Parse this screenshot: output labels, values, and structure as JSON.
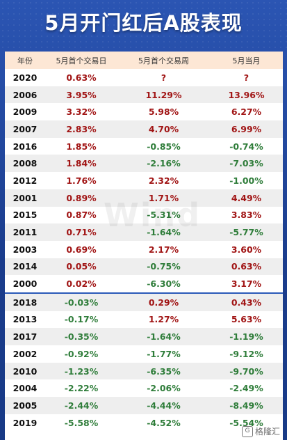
{
  "title": "5月开门红后A股表现",
  "headers": [
    "年份",
    "5月首个交易日",
    "5月首个交易周",
    "5月当月"
  ],
  "rows": [
    {
      "year": "2020",
      "day": "0.63%",
      "week": "?",
      "month": "?"
    },
    {
      "year": "2006",
      "day": "3.95%",
      "week": "11.29%",
      "month": "13.96%"
    },
    {
      "year": "2009",
      "day": "3.32%",
      "week": "5.98%",
      "month": "6.27%"
    },
    {
      "year": "2007",
      "day": "2.83%",
      "week": "4.70%",
      "month": "6.99%"
    },
    {
      "year": "2016",
      "day": "1.85%",
      "week": "-0.85%",
      "month": "-0.74%"
    },
    {
      "year": "2008",
      "day": "1.84%",
      "week": "-2.16%",
      "month": "-7.03%"
    },
    {
      "year": "2012",
      "day": "1.76%",
      "week": "2.32%",
      "month": "-1.00%"
    },
    {
      "year": "2001",
      "day": "0.89%",
      "week": "1.71%",
      "month": "4.49%"
    },
    {
      "year": "2015",
      "day": "0.87%",
      "week": "-5.31%",
      "month": "3.83%"
    },
    {
      "year": "2011",
      "day": "0.71%",
      "week": "-1.64%",
      "month": "-5.77%"
    },
    {
      "year": "2003",
      "day": "0.69%",
      "week": "2.17%",
      "month": "3.60%"
    },
    {
      "year": "2014",
      "day": "0.05%",
      "week": "-0.75%",
      "month": "0.63%"
    },
    {
      "year": "2000",
      "day": "0.02%",
      "week": "-6.30%",
      "month": "3.17%"
    },
    {
      "year": "2018",
      "day": "-0.03%",
      "week": "0.29%",
      "month": "0.43%"
    },
    {
      "year": "2013",
      "day": "-0.17%",
      "week": "1.27%",
      "month": "5.63%"
    },
    {
      "year": "2017",
      "day": "-0.35%",
      "week": "-1.64%",
      "month": "-1.19%"
    },
    {
      "year": "2002",
      "day": "-0.92%",
      "week": "-1.77%",
      "month": "-9.12%"
    },
    {
      "year": "2010",
      "day": "-1.23%",
      "week": "-6.35%",
      "month": "-9.70%"
    },
    {
      "year": "2004",
      "day": "-2.22%",
      "week": "-2.06%",
      "month": "-2.49%"
    },
    {
      "year": "2005",
      "day": "-2.44%",
      "week": "-4.44%",
      "month": "-8.49%"
    },
    {
      "year": "2019",
      "day": "-5.58%",
      "week": "-4.52%",
      "month": "-5.54%"
    }
  ],
  "watermark": "Wind",
  "logo": "格隆汇",
  "colors": {
    "positive": "#a11515",
    "negative": "#2f7d3a",
    "header_bg": "#fde7d5",
    "banner": "#2b55b3"
  }
}
